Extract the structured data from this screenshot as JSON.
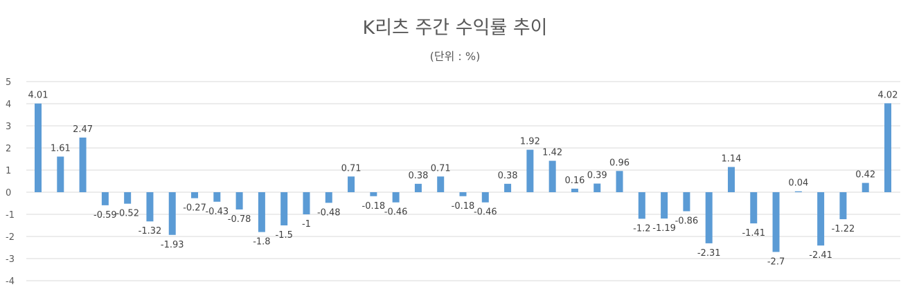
{
  "chart_data": {
    "type": "bar",
    "title": "K리츠 주간 수익률 추이",
    "subtitle": "(단위 : %)",
    "xlabel": "",
    "ylabel": "",
    "ylim": [
      -4,
      5
    ],
    "yticks": [
      "5",
      "4",
      "3",
      "2",
      "1",
      "0",
      "-1",
      "-2",
      "-3",
      "-4"
    ],
    "grid": true,
    "legend": "none",
    "bar_color": "#5B9BD5",
    "grid_color": "#D9D9D9",
    "values": [
      4.01,
      1.61,
      2.47,
      -0.59,
      -0.52,
      -1.32,
      -1.93,
      -0.27,
      -0.43,
      -0.78,
      -1.8,
      -1.5,
      -1,
      -0.48,
      0.71,
      -0.18,
      -0.46,
      0.38,
      0.71,
      -0.18,
      -0.46,
      0.38,
      1.92,
      1.42,
      0.16,
      0.39,
      0.96,
      -1.2,
      -1.19,
      -0.86,
      -2.31,
      1.14,
      -1.41,
      -2.7,
      0.04,
      -2.41,
      -1.22,
      0.42,
      4.02
    ],
    "labels": [
      "4.01",
      "1.61",
      "2.47",
      "-0.59",
      "-0.52",
      "-1.32",
      "-1.93",
      "-0.27",
      "-0.43",
      "-0.78",
      "-1.8",
      "-1.5",
      "-1",
      "-0.48",
      "0.71",
      "-0.18",
      "-0.46",
      "0.38",
      "0.71",
      "-0.18",
      "-0.46",
      "0.38",
      "1.92",
      "1.42",
      "0.16",
      "0.39",
      "0.96",
      "-1.2",
      "-1.19",
      "-0.86",
      "-2.31",
      "1.14",
      "-1.41",
      "-2.7",
      "0.04",
      "-2.41",
      "-1.22",
      "0.42",
      "4.02"
    ]
  }
}
